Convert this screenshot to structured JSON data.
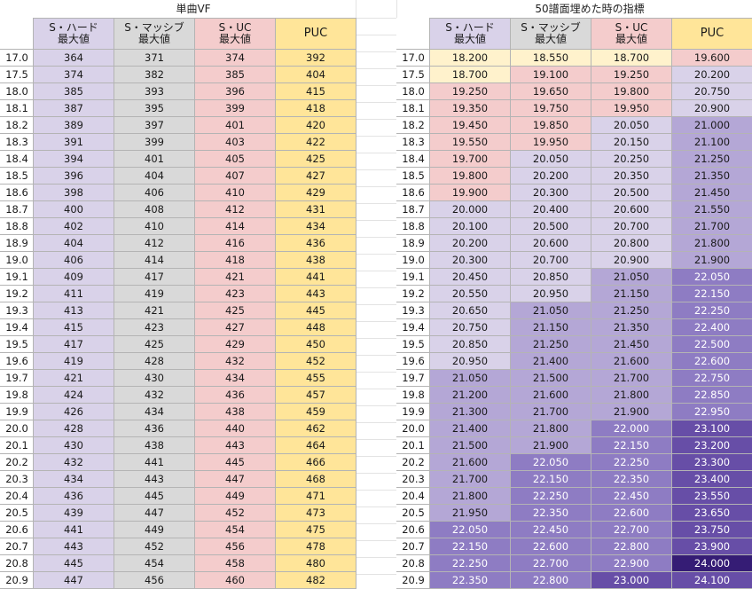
{
  "left_table": {
    "title": "単曲VF",
    "headers": [
      {
        "line1": "S・ハード",
        "line2": "最大値"
      },
      {
        "line1": "S・マッシブ",
        "line2": "最大値"
      },
      {
        "line1": "S・UC",
        "line2": "最大値"
      },
      {
        "line1": "PUC",
        "line2": ""
      }
    ],
    "rows": [
      {
        "level": "17.0",
        "values": [
          "364",
          "371",
          "374",
          "392"
        ]
      },
      {
        "level": "17.5",
        "values": [
          "374",
          "382",
          "385",
          "404"
        ]
      },
      {
        "level": "18.0",
        "values": [
          "385",
          "393",
          "396",
          "415"
        ]
      },
      {
        "level": "18.1",
        "values": [
          "387",
          "395",
          "399",
          "418"
        ]
      },
      {
        "level": "18.2",
        "values": [
          "389",
          "397",
          "401",
          "420"
        ]
      },
      {
        "level": "18.3",
        "values": [
          "391",
          "399",
          "403",
          "422"
        ]
      },
      {
        "level": "18.4",
        "values": [
          "394",
          "401",
          "405",
          "425"
        ]
      },
      {
        "level": "18.5",
        "values": [
          "396",
          "404",
          "407",
          "427"
        ]
      },
      {
        "level": "18.6",
        "values": [
          "398",
          "406",
          "410",
          "429"
        ]
      },
      {
        "level": "18.7",
        "values": [
          "400",
          "408",
          "412",
          "431"
        ]
      },
      {
        "level": "18.8",
        "values": [
          "402",
          "410",
          "414",
          "434"
        ]
      },
      {
        "level": "18.9",
        "values": [
          "404",
          "412",
          "416",
          "436"
        ]
      },
      {
        "level": "19.0",
        "values": [
          "406",
          "414",
          "418",
          "438"
        ]
      },
      {
        "level": "19.1",
        "values": [
          "409",
          "417",
          "421",
          "441"
        ]
      },
      {
        "level": "19.2",
        "values": [
          "411",
          "419",
          "423",
          "443"
        ]
      },
      {
        "level": "19.3",
        "values": [
          "413",
          "421",
          "425",
          "445"
        ]
      },
      {
        "level": "19.4",
        "values": [
          "415",
          "423",
          "427",
          "448"
        ]
      },
      {
        "level": "19.5",
        "values": [
          "417",
          "425",
          "429",
          "450"
        ]
      },
      {
        "level": "19.6",
        "values": [
          "419",
          "428",
          "432",
          "452"
        ]
      },
      {
        "level": "19.7",
        "values": [
          "421",
          "430",
          "434",
          "455"
        ]
      },
      {
        "level": "19.8",
        "values": [
          "424",
          "432",
          "436",
          "457"
        ]
      },
      {
        "level": "19.9",
        "values": [
          "426",
          "434",
          "438",
          "459"
        ]
      },
      {
        "level": "20.0",
        "values": [
          "428",
          "436",
          "440",
          "462"
        ]
      },
      {
        "level": "20.1",
        "values": [
          "430",
          "438",
          "443",
          "464"
        ]
      },
      {
        "level": "20.2",
        "values": [
          "432",
          "441",
          "445",
          "466"
        ]
      },
      {
        "level": "20.3",
        "values": [
          "434",
          "443",
          "447",
          "468"
        ]
      },
      {
        "level": "20.4",
        "values": [
          "436",
          "445",
          "449",
          "471"
        ]
      },
      {
        "level": "20.5",
        "values": [
          "439",
          "447",
          "452",
          "473"
        ]
      },
      {
        "level": "20.6",
        "values": [
          "441",
          "449",
          "454",
          "475"
        ]
      },
      {
        "level": "20.7",
        "values": [
          "443",
          "452",
          "456",
          "478"
        ]
      },
      {
        "level": "20.8",
        "values": [
          "445",
          "454",
          "458",
          "480"
        ]
      },
      {
        "level": "20.9",
        "values": [
          "447",
          "456",
          "460",
          "482"
        ]
      }
    ],
    "column_colors": [
      "#d9d2e9",
      "#d9d9d9",
      "#f4cccc",
      "#ffe599"
    ]
  },
  "right_table": {
    "title": "50譜面埋めた時の指標",
    "headers": [
      {
        "line1": "S・ハード",
        "line2": "最大値"
      },
      {
        "line1": "S・マッシブ",
        "line2": "最大値"
      },
      {
        "line1": "S・UC",
        "line2": "最大値"
      },
      {
        "line1": "PUC",
        "line2": ""
      }
    ],
    "tier_colors": {
      "y": "#fff2cc",
      "p": "#f4cccc",
      "l1": "#d9d2e9",
      "l2": "#b4a7d6",
      "l3": "#8e7cc3",
      "l4": "#674ea7",
      "l5": "#351c75"
    },
    "rows": [
      {
        "level": "17.0",
        "values": [
          "18.200",
          "18.550",
          "18.700",
          "19.600"
        ],
        "tiers": [
          "y",
          "y",
          "y",
          "p"
        ]
      },
      {
        "level": "17.5",
        "values": [
          "18.700",
          "19.100",
          "19.250",
          "20.200"
        ],
        "tiers": [
          "y",
          "p",
          "p",
          "l1"
        ]
      },
      {
        "level": "18.0",
        "values": [
          "19.250",
          "19.650",
          "19.800",
          "20.750"
        ],
        "tiers": [
          "p",
          "p",
          "p",
          "l1"
        ]
      },
      {
        "level": "18.1",
        "values": [
          "19.350",
          "19.750",
          "19.950",
          "20.900"
        ],
        "tiers": [
          "p",
          "p",
          "p",
          "l1"
        ]
      },
      {
        "level": "18.2",
        "values": [
          "19.450",
          "19.850",
          "20.050",
          "21.000"
        ],
        "tiers": [
          "p",
          "p",
          "l1",
          "l2"
        ]
      },
      {
        "level": "18.3",
        "values": [
          "19.550",
          "19.950",
          "20.150",
          "21.100"
        ],
        "tiers": [
          "p",
          "p",
          "l1",
          "l2"
        ]
      },
      {
        "level": "18.4",
        "values": [
          "19.700",
          "20.050",
          "20.250",
          "21.250"
        ],
        "tiers": [
          "p",
          "l1",
          "l1",
          "l2"
        ]
      },
      {
        "level": "18.5",
        "values": [
          "19.800",
          "20.200",
          "20.350",
          "21.350"
        ],
        "tiers": [
          "p",
          "l1",
          "l1",
          "l2"
        ]
      },
      {
        "level": "18.6",
        "values": [
          "19.900",
          "20.300",
          "20.500",
          "21.450"
        ],
        "tiers": [
          "p",
          "l1",
          "l1",
          "l2"
        ]
      },
      {
        "level": "18.7",
        "values": [
          "20.000",
          "20.400",
          "20.600",
          "21.550"
        ],
        "tiers": [
          "l1",
          "l1",
          "l1",
          "l2"
        ]
      },
      {
        "level": "18.8",
        "values": [
          "20.100",
          "20.500",
          "20.700",
          "21.700"
        ],
        "tiers": [
          "l1",
          "l1",
          "l1",
          "l2"
        ]
      },
      {
        "level": "18.9",
        "values": [
          "20.200",
          "20.600",
          "20.800",
          "21.800"
        ],
        "tiers": [
          "l1",
          "l1",
          "l1",
          "l2"
        ]
      },
      {
        "level": "19.0",
        "values": [
          "20.300",
          "20.700",
          "20.900",
          "21.900"
        ],
        "tiers": [
          "l1",
          "l1",
          "l1",
          "l2"
        ]
      },
      {
        "level": "19.1",
        "values": [
          "20.450",
          "20.850",
          "21.050",
          "22.050"
        ],
        "tiers": [
          "l1",
          "l1",
          "l2",
          "l3"
        ]
      },
      {
        "level": "19.2",
        "values": [
          "20.550",
          "20.950",
          "21.150",
          "22.150"
        ],
        "tiers": [
          "l1",
          "l1",
          "l2",
          "l3"
        ]
      },
      {
        "level": "19.3",
        "values": [
          "20.650",
          "21.050",
          "21.250",
          "22.250"
        ],
        "tiers": [
          "l1",
          "l2",
          "l2",
          "l3"
        ]
      },
      {
        "level": "19.4",
        "values": [
          "20.750",
          "21.150",
          "21.350",
          "22.400"
        ],
        "tiers": [
          "l1",
          "l2",
          "l2",
          "l3"
        ]
      },
      {
        "level": "19.5",
        "values": [
          "20.850",
          "21.250",
          "21.450",
          "22.500"
        ],
        "tiers": [
          "l1",
          "l2",
          "l2",
          "l3"
        ]
      },
      {
        "level": "19.6",
        "values": [
          "20.950",
          "21.400",
          "21.600",
          "22.600"
        ],
        "tiers": [
          "l1",
          "l2",
          "l2",
          "l3"
        ]
      },
      {
        "level": "19.7",
        "values": [
          "21.050",
          "21.500",
          "21.700",
          "22.750"
        ],
        "tiers": [
          "l2",
          "l2",
          "l2",
          "l3"
        ]
      },
      {
        "level": "19.8",
        "values": [
          "21.200",
          "21.600",
          "21.800",
          "22.850"
        ],
        "tiers": [
          "l2",
          "l2",
          "l2",
          "l3"
        ]
      },
      {
        "level": "19.9",
        "values": [
          "21.300",
          "21.700",
          "21.900",
          "22.950"
        ],
        "tiers": [
          "l2",
          "l2",
          "l2",
          "l3"
        ]
      },
      {
        "level": "20.0",
        "values": [
          "21.400",
          "21.800",
          "22.000",
          "23.100"
        ],
        "tiers": [
          "l2",
          "l2",
          "l3",
          "l4"
        ]
      },
      {
        "level": "20.1",
        "values": [
          "21.500",
          "21.900",
          "22.150",
          "23.200"
        ],
        "tiers": [
          "l2",
          "l2",
          "l3",
          "l4"
        ]
      },
      {
        "level": "20.2",
        "values": [
          "21.600",
          "22.050",
          "22.250",
          "23.300"
        ],
        "tiers": [
          "l2",
          "l3",
          "l3",
          "l4"
        ]
      },
      {
        "level": "20.3",
        "values": [
          "21.700",
          "22.150",
          "22.350",
          "23.400"
        ],
        "tiers": [
          "l2",
          "l3",
          "l3",
          "l4"
        ]
      },
      {
        "level": "20.4",
        "values": [
          "21.800",
          "22.250",
          "22.450",
          "23.550"
        ],
        "tiers": [
          "l2",
          "l3",
          "l3",
          "l4"
        ]
      },
      {
        "level": "20.5",
        "values": [
          "21.950",
          "22.350",
          "22.600",
          "23.650"
        ],
        "tiers": [
          "l2",
          "l3",
          "l3",
          "l4"
        ]
      },
      {
        "level": "20.6",
        "values": [
          "22.050",
          "22.450",
          "22.700",
          "23.750"
        ],
        "tiers": [
          "l3",
          "l3",
          "l3",
          "l4"
        ]
      },
      {
        "level": "20.7",
        "values": [
          "22.150",
          "22.600",
          "22.800",
          "23.900"
        ],
        "tiers": [
          "l3",
          "l3",
          "l3",
          "l4"
        ]
      },
      {
        "level": "20.8",
        "values": [
          "22.250",
          "22.700",
          "22.900",
          "24.000"
        ],
        "tiers": [
          "l3",
          "l3",
          "l3",
          "l5"
        ]
      },
      {
        "level": "20.9",
        "values": [
          "22.350",
          "22.800",
          "23.000",
          "24.100"
        ],
        "tiers": [
          "l3",
          "l3",
          "l4",
          "l4"
        ]
      }
    ]
  }
}
